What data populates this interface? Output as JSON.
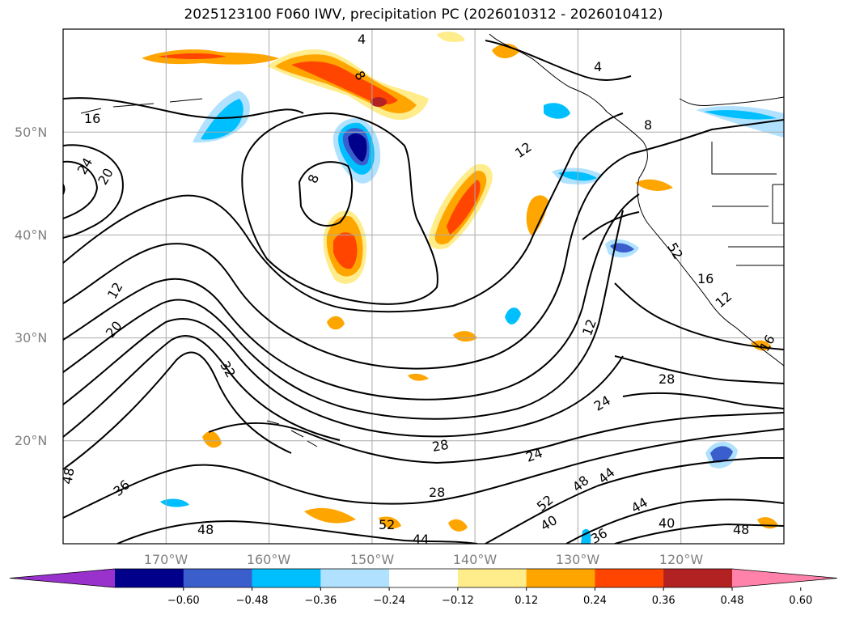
{
  "title": "2025123100 F060 IWV, precipitation PC (2026010312 - 2026010412)",
  "map": {
    "projection": "lat-lon",
    "lon_range": [
      -180,
      -110
    ],
    "lat_range": [
      10,
      60
    ],
    "lat_ticks": [
      {
        "value": 50,
        "label": "50°N"
      },
      {
        "value": 40,
        "label": "40°N"
      },
      {
        "value": 30,
        "label": "30°N"
      },
      {
        "value": 20,
        "label": "20°N"
      }
    ],
    "lon_ticks": [
      {
        "value": -170,
        "label": "170°W"
      },
      {
        "value": -160,
        "label": "160°W"
      },
      {
        "value": -150,
        "label": "150°W"
      },
      {
        "value": -140,
        "label": "140°W"
      },
      {
        "value": -130,
        "label": "130°W"
      },
      {
        "value": -120,
        "label": "120°W"
      }
    ],
    "grid": true,
    "contour_field": "IWV",
    "contour_labels": [
      "16",
      "24",
      "20",
      "8",
      "4",
      "8",
      "12",
      "4",
      "8",
      "12",
      "20",
      "32",
      "12",
      "28",
      "24",
      "28",
      "24",
      "28",
      "36",
      "48",
      "52",
      "44",
      "52",
      "48",
      "44",
      "40",
      "36",
      "44",
      "40",
      "48",
      "48",
      "52",
      "16",
      "12",
      "16"
    ],
    "shaded_field": "precipitation PC"
  },
  "colorbar": {
    "extend": "both",
    "ticks": [
      "−0.60",
      "−0.48",
      "−0.36",
      "−0.24",
      "−0.12",
      "0.12",
      "0.24",
      "0.36",
      "0.48",
      "0.60"
    ],
    "colors": [
      "#9932cc",
      "#00008b",
      "#3a5fcd",
      "#00bfff",
      "#b0e2ff",
      "#ffffff",
      "#ffec8b",
      "#ffa500",
      "#ff4500",
      "#b22222",
      "#ff82ab"
    ]
  }
}
